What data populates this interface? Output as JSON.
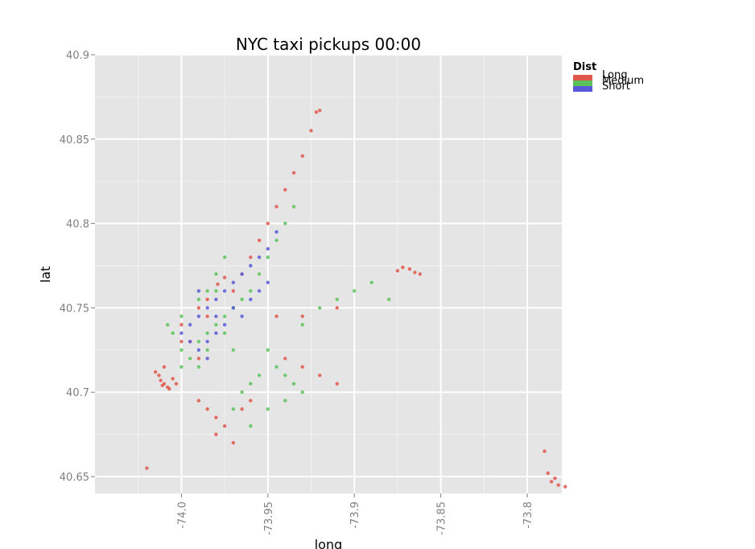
{
  "chart_data": {
    "type": "scatter",
    "title": "NYC taxi pickups 00:00",
    "xlabel": "long",
    "ylabel": "lat",
    "xlim": [
      -74.05,
      -73.78
    ],
    "ylim": [
      40.64,
      40.9
    ],
    "x_ticks": [
      -74.0,
      -73.95,
      -73.9,
      -73.85,
      -73.8
    ],
    "x_tick_labels": [
      "-74.0",
      "-73.95",
      "-73.9",
      "-73.85",
      "-73.8"
    ],
    "y_ticks": [
      40.65,
      40.7,
      40.75,
      40.8,
      40.85,
      40.9
    ],
    "y_tick_labels": [
      "40.65",
      "40.7",
      "40.75",
      "40.8",
      "40.85",
      "40.9"
    ],
    "grid": true,
    "legend": {
      "title": "Dist",
      "position": "right",
      "entries": [
        {
          "label": "Long",
          "color": "#e0584b"
        },
        {
          "label": "Medium",
          "color": "#5cc35a"
        },
        {
          "label": "Short",
          "color": "#5a5ad8"
        }
      ]
    },
    "series": [
      {
        "name": "Long",
        "color": "#e0584b",
        "points": [
          [
            -74.01,
            40.705
          ],
          [
            -74.012,
            40.707
          ],
          [
            -74.008,
            40.703
          ],
          [
            -74.013,
            40.71
          ],
          [
            -74.005,
            40.708
          ],
          [
            -74.015,
            40.712
          ],
          [
            -74.01,
            40.715
          ],
          [
            -74.007,
            40.702
          ],
          [
            -74.011,
            40.704
          ],
          [
            -74.003,
            40.705
          ],
          [
            -73.979,
            40.764
          ],
          [
            -73.975,
            40.768
          ],
          [
            -73.97,
            40.76
          ],
          [
            -73.985,
            40.755
          ],
          [
            -73.99,
            40.75
          ],
          [
            -73.965,
            40.77
          ],
          [
            -73.96,
            40.78
          ],
          [
            -73.955,
            40.79
          ],
          [
            -73.95,
            40.8
          ],
          [
            -73.945,
            40.81
          ],
          [
            -73.94,
            40.82
          ],
          [
            -73.935,
            40.83
          ],
          [
            -73.93,
            40.84
          ],
          [
            -73.925,
            40.855
          ],
          [
            -73.922,
            40.866
          ],
          [
            -73.92,
            40.867
          ],
          [
            -73.875,
            40.772
          ],
          [
            -73.872,
            40.774
          ],
          [
            -73.868,
            40.773
          ],
          [
            -73.865,
            40.771
          ],
          [
            -73.862,
            40.77
          ],
          [
            -73.79,
            40.665
          ],
          [
            -73.786,
            40.647
          ],
          [
            -73.782,
            40.645
          ],
          [
            -73.778,
            40.644
          ],
          [
            -73.784,
            40.649
          ],
          [
            -73.788,
            40.652
          ],
          [
            -73.99,
            40.695
          ],
          [
            -73.985,
            40.69
          ],
          [
            -73.98,
            40.685
          ],
          [
            -73.975,
            40.68
          ],
          [
            -73.98,
            40.675
          ],
          [
            -73.97,
            40.67
          ],
          [
            -73.965,
            40.69
          ],
          [
            -73.96,
            40.695
          ],
          [
            -73.94,
            40.72
          ],
          [
            -73.93,
            40.715
          ],
          [
            -73.92,
            40.71
          ],
          [
            -73.91,
            40.705
          ],
          [
            -73.91,
            40.75
          ],
          [
            -73.93,
            40.745
          ],
          [
            -73.945,
            40.745
          ],
          [
            -74.0,
            40.74
          ],
          [
            -73.995,
            40.73
          ],
          [
            -73.99,
            40.72
          ],
          [
            -74.0,
            40.73
          ],
          [
            -73.985,
            40.745
          ],
          [
            -74.02,
            40.655
          ]
        ]
      },
      {
        "name": "Medium",
        "color": "#5cc35a",
        "points": [
          [
            -74.0,
            40.725
          ],
          [
            -73.995,
            40.72
          ],
          [
            -73.99,
            40.73
          ],
          [
            -73.985,
            40.735
          ],
          [
            -73.98,
            40.74
          ],
          [
            -73.975,
            40.745
          ],
          [
            -73.97,
            40.75
          ],
          [
            -73.965,
            40.755
          ],
          [
            -73.96,
            40.76
          ],
          [
            -73.955,
            40.77
          ],
          [
            -73.95,
            40.78
          ],
          [
            -73.945,
            40.79
          ],
          [
            -73.94,
            40.8
          ],
          [
            -73.935,
            40.81
          ],
          [
            -73.975,
            40.78
          ],
          [
            -73.98,
            40.77
          ],
          [
            -73.985,
            40.76
          ],
          [
            -74.005,
            40.735
          ],
          [
            -74.008,
            40.74
          ],
          [
            -74.0,
            40.745
          ],
          [
            -73.99,
            40.755
          ],
          [
            -73.98,
            40.76
          ],
          [
            -73.95,
            40.725
          ],
          [
            -73.945,
            40.715
          ],
          [
            -73.94,
            40.71
          ],
          [
            -73.935,
            40.705
          ],
          [
            -73.93,
            40.7
          ],
          [
            -73.955,
            40.71
          ],
          [
            -73.96,
            40.705
          ],
          [
            -73.965,
            40.7
          ],
          [
            -73.93,
            40.74
          ],
          [
            -73.92,
            40.75
          ],
          [
            -73.91,
            40.755
          ],
          [
            -73.9,
            40.76
          ],
          [
            -73.89,
            40.765
          ],
          [
            -73.88,
            40.755
          ],
          [
            -73.97,
            40.69
          ],
          [
            -73.96,
            40.68
          ],
          [
            -73.95,
            40.69
          ],
          [
            -73.94,
            40.695
          ],
          [
            -73.99,
            40.715
          ],
          [
            -74.0,
            40.715
          ],
          [
            -73.985,
            40.725
          ],
          [
            -73.975,
            40.735
          ],
          [
            -73.97,
            40.725
          ]
        ]
      },
      {
        "name": "Short",
        "color": "#5a5ad8",
        "points": [
          [
            -73.985,
            40.75
          ],
          [
            -73.98,
            40.755
          ],
          [
            -73.975,
            40.76
          ],
          [
            -73.97,
            40.765
          ],
          [
            -73.965,
            40.77
          ],
          [
            -73.96,
            40.775
          ],
          [
            -73.955,
            40.78
          ],
          [
            -73.99,
            40.745
          ],
          [
            -73.995,
            40.74
          ],
          [
            -74.0,
            40.735
          ],
          [
            -73.985,
            40.73
          ],
          [
            -73.98,
            40.735
          ],
          [
            -73.975,
            40.74
          ],
          [
            -73.965,
            40.745
          ],
          [
            -73.96,
            40.755
          ],
          [
            -73.95,
            40.785
          ],
          [
            -73.945,
            40.795
          ],
          [
            -73.99,
            40.725
          ],
          [
            -73.985,
            40.72
          ],
          [
            -73.995,
            40.73
          ],
          [
            -73.95,
            40.765
          ],
          [
            -73.955,
            40.76
          ],
          [
            -73.97,
            40.75
          ],
          [
            -73.98,
            40.745
          ],
          [
            -73.99,
            40.76
          ]
        ]
      }
    ]
  }
}
